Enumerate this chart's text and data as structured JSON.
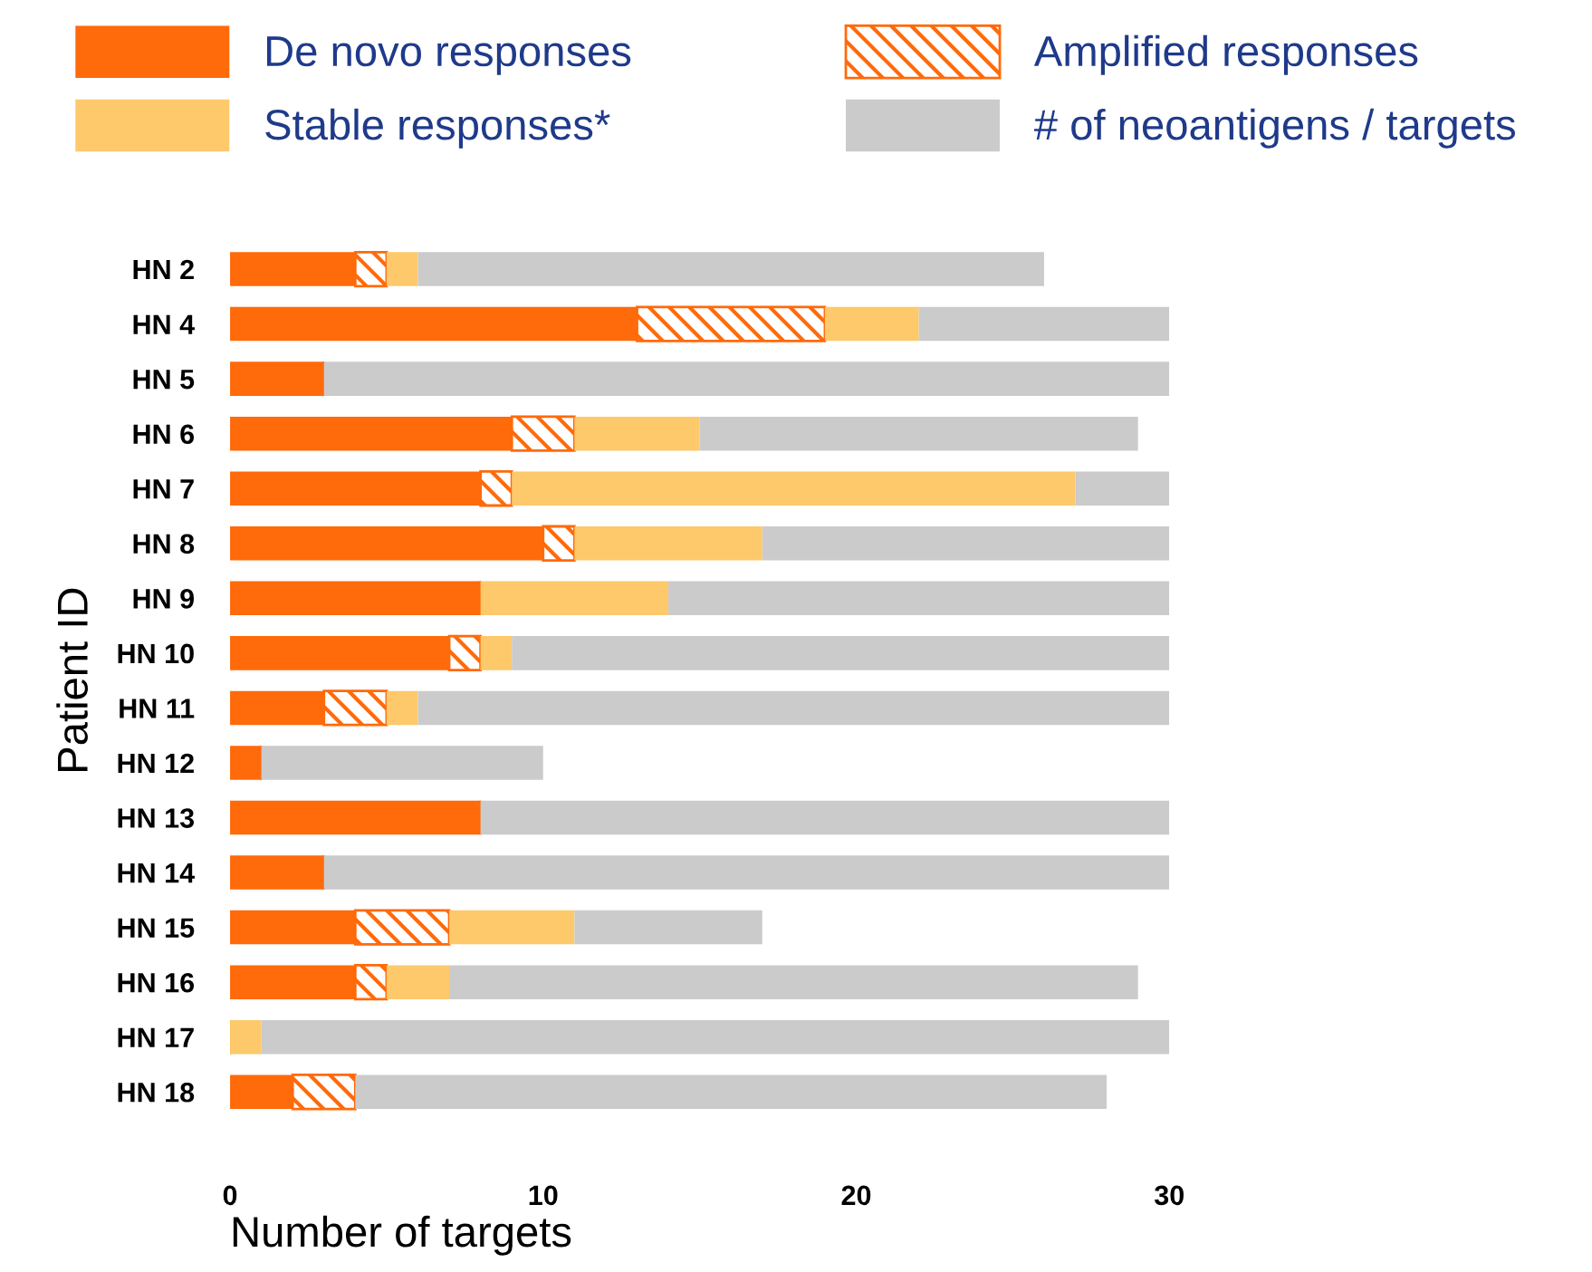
{
  "chart_data": {
    "type": "bar",
    "orientation": "horizontal",
    "stacked": true,
    "xlabel": "Number of targets",
    "ylabel": "Patient ID",
    "categories": [
      "HN 2",
      "HN 4",
      "HN 5",
      "HN 6",
      "HN 7",
      "HN 8",
      "HN 9",
      "HN 10",
      "HN 11",
      "HN 12",
      "HN 13",
      "HN 14",
      "HN 15",
      "HN 16",
      "HN 17",
      "HN 18"
    ],
    "series": [
      {
        "name": "De novo responses",
        "color": "#ff6a0a",
        "values": [
          4,
          13,
          3,
          9,
          8,
          10,
          8,
          7,
          3,
          1,
          8,
          3,
          4,
          4,
          0,
          2
        ]
      },
      {
        "name": "Amplified responses",
        "color": "#ff6a0a",
        "values": [
          1,
          6,
          0,
          2,
          1,
          1,
          0,
          1,
          2,
          0,
          0,
          0,
          3,
          1,
          0,
          2
        ]
      },
      {
        "name": "Stable responses*",
        "color": "#fdc96b",
        "values": [
          1,
          3,
          0,
          4,
          18,
          6,
          6,
          1,
          1,
          0,
          0,
          0,
          4,
          2,
          1,
          0
        ]
      },
      {
        "name": "# of neoantigens / targets",
        "color": "#cbcbcb",
        "values": [
          20,
          8,
          27,
          14,
          3,
          13,
          16,
          21,
          24,
          9,
          22,
          27,
          6,
          22,
          29,
          24
        ]
      }
    ],
    "xlim": [
      0,
      30
    ],
    "xticks": [
      0,
      10,
      20,
      30
    ],
    "grid": false,
    "legend": "top"
  }
}
